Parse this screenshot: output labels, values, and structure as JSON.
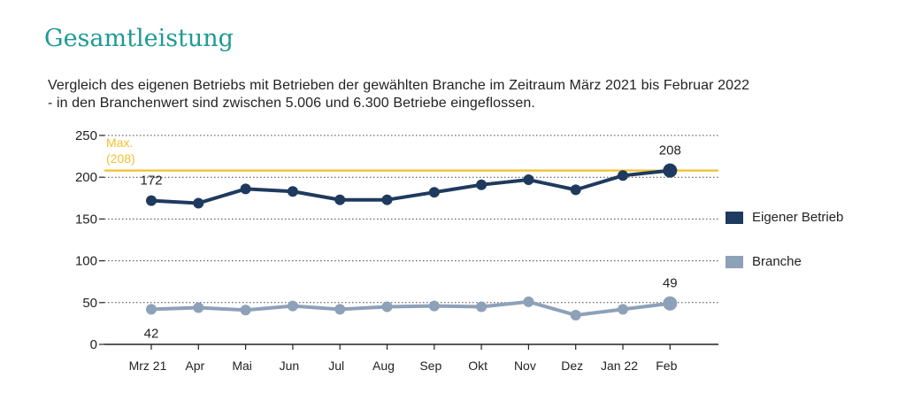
{
  "title": "Gesamtleistung",
  "subtitle_line1": "Vergleich des eigenen Betriebs mit Betrieben der gewählten Branche im Zeitraum März 2021 bis Februar 2022",
  "subtitle_line2": "- in den Branchenwert sind zwischen 5.006 und 6.300 Betriebe eingeflossen.",
  "colors": {
    "series_own": "#1f3a5f",
    "series_branch": "#8da1b9",
    "reference_line": "#f0c030",
    "title": "#1e9a96"
  },
  "chart_data": {
    "type": "line",
    "categories": [
      "Mrz 21",
      "Apr",
      "Mai",
      "Jun",
      "Jul",
      "Aug",
      "Sep",
      "Okt",
      "Nov",
      "Dez",
      "Jan 22",
      "Feb"
    ],
    "series": [
      {
        "name": "Eigener Betrieb",
        "values": [
          172,
          169,
          186,
          183,
          173,
          173,
          182,
          191,
          197,
          185,
          202,
          208
        ]
      },
      {
        "name": "Branche",
        "values": [
          42,
          44,
          41,
          46,
          42,
          45,
          46,
          45,
          51,
          35,
          42,
          49
        ]
      }
    ],
    "ylim": [
      0,
      250
    ],
    "yticks": [
      0,
      50,
      100,
      150,
      200,
      250
    ],
    "reference_line": {
      "value": 208,
      "label_line1": "Max.",
      "label_line2": "(208)"
    },
    "data_labels": [
      {
        "series": 0,
        "index": 0,
        "text": "172",
        "position": "above"
      },
      {
        "series": 0,
        "index": 11,
        "text": "208",
        "position": "above"
      },
      {
        "series": 1,
        "index": 0,
        "text": "42",
        "position": "below"
      },
      {
        "series": 1,
        "index": 11,
        "text": "49",
        "position": "above"
      }
    ],
    "legend_position": "right",
    "grid": "horizontal dotted"
  }
}
